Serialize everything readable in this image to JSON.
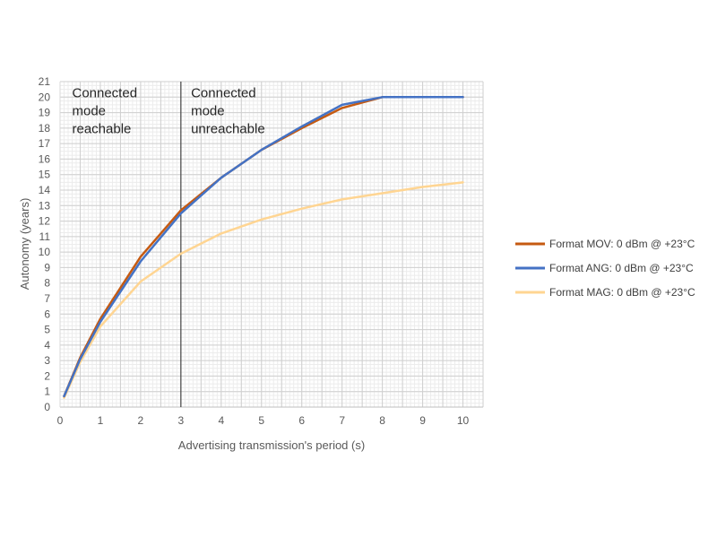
{
  "chart_data": {
    "type": "line",
    "title": "",
    "xlabel": "Advertising transmission's period (s)",
    "ylabel": "Autonomy (years)",
    "xlim": [
      0,
      10.5
    ],
    "ylim": [
      0,
      21
    ],
    "xticks": [
      0,
      1,
      2,
      3,
      4,
      5,
      6,
      7,
      8,
      9,
      10
    ],
    "yticks": [
      0,
      1,
      2,
      3,
      4,
      5,
      6,
      7,
      8,
      9,
      10,
      11,
      12,
      13,
      14,
      15,
      16,
      17,
      18,
      19,
      20,
      21
    ],
    "grid": true,
    "legend_position": "right",
    "vline_x": 3,
    "annotations": [
      {
        "lines": [
          "Connected",
          "mode",
          "reachable"
        ],
        "x": 0.3,
        "y": 20.8
      },
      {
        "lines": [
          "Connected",
          "mode",
          "unreachable"
        ],
        "x": 3.25,
        "y": 20.8
      }
    ],
    "series": [
      {
        "name": "Format MOV: 0 dBm @ +23°C",
        "color": "#c55a11",
        "x": [
          0.1,
          0.5,
          1,
          2,
          3,
          4,
          5,
          6,
          7,
          8,
          9,
          10
        ],
        "y": [
          0.7,
          3.2,
          5.7,
          9.7,
          12.7,
          14.8,
          16.6,
          18.0,
          19.3,
          20.0,
          20.0,
          20.0
        ]
      },
      {
        "name": "Format ANG: 0 dBm @ +23°C",
        "color": "#4472c4",
        "x": [
          0.1,
          0.5,
          1,
          2,
          3,
          4,
          5,
          6,
          7,
          8,
          9,
          10
        ],
        "y": [
          0.7,
          3.1,
          5.5,
          9.4,
          12.5,
          14.8,
          16.6,
          18.1,
          19.5,
          20.0,
          20.0,
          20.0
        ]
      },
      {
        "name": "Format MAG: 0 dBm @ +23°C",
        "color": "#ffd592",
        "x": [
          0.1,
          0.5,
          1,
          2,
          3,
          4,
          5,
          6,
          7,
          8,
          9,
          10
        ],
        "y": [
          0.6,
          2.9,
          5.2,
          8.1,
          9.9,
          11.2,
          12.1,
          12.8,
          13.4,
          13.8,
          14.2,
          14.5
        ]
      }
    ]
  }
}
